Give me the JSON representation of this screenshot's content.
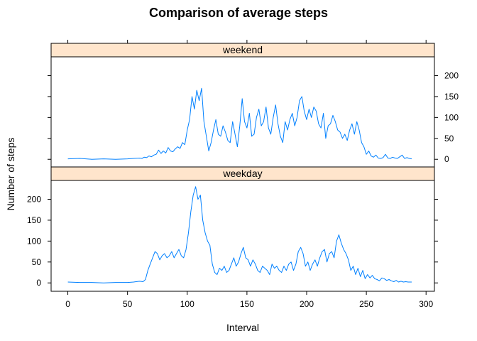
{
  "chart_data": {
    "type": "line",
    "title": "Comparison of average steps",
    "xlabel": "Interval",
    "ylabel": "Number of steps",
    "xlim": [
      -14,
      307
    ],
    "ylim": [
      -20,
      245
    ],
    "x_ticks": [
      0,
      50,
      100,
      150,
      200,
      250,
      300
    ],
    "y_ticks": [
      0,
      50,
      100,
      150,
      200
    ],
    "line_color": "#0080FF",
    "strip_color": "#FFE5CC",
    "panels": [
      {
        "name": "weekend",
        "x": [
          0,
          10,
          20,
          30,
          40,
          50,
          55,
          60,
          62,
          64,
          66,
          68,
          70,
          72,
          74,
          76,
          78,
          80,
          82,
          84,
          86,
          88,
          90,
          92,
          94,
          96,
          98,
          100,
          102,
          104,
          106,
          108,
          110,
          112,
          114,
          116,
          118,
          120,
          122,
          124,
          126,
          128,
          130,
          132,
          134,
          136,
          138,
          140,
          142,
          144,
          146,
          148,
          150,
          152,
          154,
          156,
          158,
          160,
          162,
          164,
          166,
          168,
          170,
          172,
          174,
          176,
          178,
          180,
          182,
          184,
          186,
          188,
          190,
          192,
          194,
          196,
          198,
          200,
          202,
          204,
          206,
          208,
          210,
          212,
          214,
          216,
          218,
          220,
          222,
          224,
          226,
          228,
          230,
          232,
          234,
          236,
          238,
          240,
          242,
          244,
          246,
          248,
          250,
          252,
          254,
          256,
          258,
          260,
          262,
          264,
          266,
          268,
          270,
          272,
          274,
          276,
          278,
          280,
          282,
          284,
          286,
          288
        ],
        "values": [
          1,
          2,
          0,
          1,
          0,
          1,
          2,
          3,
          2,
          5,
          4,
          8,
          6,
          10,
          12,
          22,
          14,
          20,
          15,
          28,
          20,
          18,
          25,
          30,
          26,
          40,
          35,
          70,
          95,
          150,
          120,
          165,
          140,
          170,
          90,
          55,
          20,
          40,
          70,
          95,
          60,
          55,
          80,
          65,
          45,
          40,
          90,
          60,
          30,
          80,
          145,
          90,
          75,
          110,
          55,
          60,
          100,
          120,
          80,
          90,
          125,
          75,
          60,
          100,
          130,
          85,
          55,
          40,
          90,
          70,
          95,
          110,
          80,
          100,
          140,
          150,
          115,
          95,
          120,
          100,
          125,
          115,
          85,
          75,
          110,
          50,
          80,
          85,
          105,
          90,
          70,
          65,
          50,
          60,
          45,
          70,
          85,
          60,
          90,
          70,
          40,
          30,
          12,
          20,
          8,
          5,
          10,
          3,
          2,
          4,
          12,
          3,
          2,
          5,
          3,
          2,
          6,
          10,
          2,
          4,
          2,
          1
        ]
      },
      {
        "name": "weekday",
        "x": [
          0,
          10,
          20,
          30,
          40,
          50,
          55,
          60,
          63,
          65,
          67,
          69,
          71,
          73,
          75,
          77,
          79,
          81,
          83,
          85,
          87,
          89,
          91,
          93,
          95,
          97,
          99,
          101,
          103,
          105,
          107,
          109,
          111,
          113,
          115,
          117,
          119,
          121,
          123,
          125,
          127,
          129,
          131,
          133,
          135,
          137,
          139,
          141,
          143,
          145,
          147,
          149,
          151,
          153,
          155,
          157,
          159,
          161,
          163,
          165,
          167,
          169,
          171,
          173,
          175,
          177,
          179,
          181,
          183,
          185,
          187,
          189,
          191,
          193,
          195,
          197,
          199,
          201,
          203,
          205,
          207,
          209,
          211,
          213,
          215,
          217,
          219,
          221,
          223,
          225,
          227,
          229,
          231,
          233,
          235,
          237,
          239,
          241,
          243,
          245,
          247,
          249,
          251,
          253,
          255,
          257,
          259,
          261,
          263,
          265,
          267,
          269,
          271,
          273,
          275,
          277,
          279,
          281,
          283,
          285,
          288
        ],
        "values": [
          2,
          1,
          1,
          0,
          1,
          1,
          2,
          4,
          3,
          8,
          30,
          45,
          60,
          75,
          70,
          55,
          65,
          70,
          60,
          65,
          75,
          60,
          70,
          80,
          65,
          60,
          80,
          120,
          170,
          210,
          230,
          200,
          210,
          150,
          120,
          100,
          90,
          45,
          25,
          20,
          35,
          30,
          40,
          25,
          30,
          45,
          60,
          40,
          50,
          70,
          85,
          60,
          55,
          40,
          55,
          45,
          30,
          25,
          40,
          35,
          30,
          20,
          45,
          35,
          40,
          30,
          25,
          40,
          30,
          45,
          50,
          30,
          45,
          75,
          85,
          70,
          40,
          50,
          30,
          45,
          55,
          40,
          60,
          75,
          80,
          50,
          70,
          75,
          60,
          100,
          115,
          95,
          80,
          70,
          55,
          30,
          40,
          20,
          35,
          15,
          30,
          10,
          20,
          12,
          18,
          10,
          8,
          5,
          12,
          10,
          6,
          8,
          5,
          3,
          6,
          2,
          4,
          2,
          3,
          2,
          2
        ]
      }
    ]
  }
}
